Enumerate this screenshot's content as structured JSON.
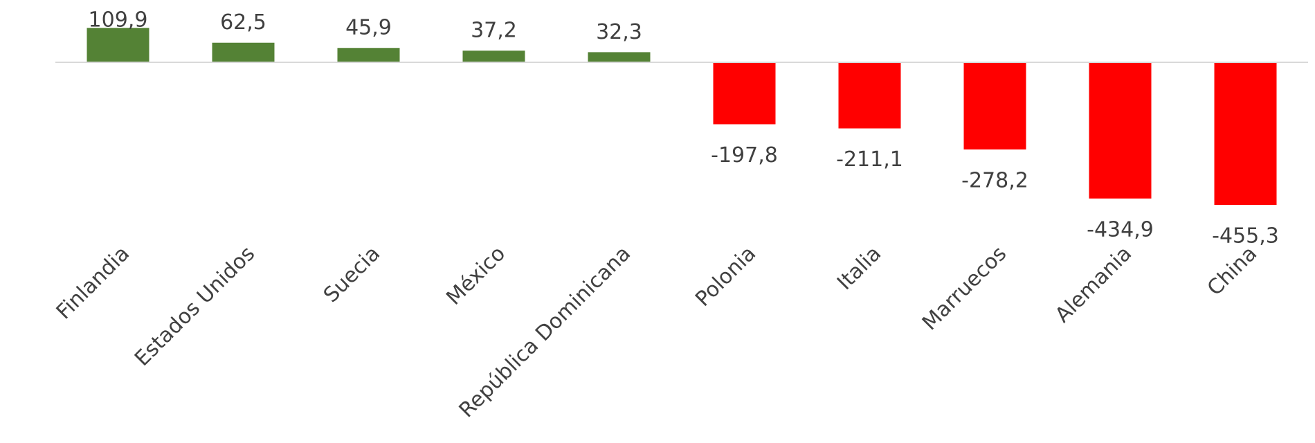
{
  "chart_data": {
    "type": "bar",
    "categories": [
      "Finlandia",
      "Estados Unidos",
      "Suecia",
      "México",
      "República Dominicana",
      "Polonia",
      "Italia",
      "Marruecos",
      "Alemania",
      "China"
    ],
    "values": [
      109.9,
      62.5,
      45.9,
      37.2,
      32.3,
      -197.8,
      -211.1,
      -278.2,
      -434.9,
      -455.3
    ],
    "value_labels": [
      "109,9",
      "62,5",
      "45,9",
      "37,2",
      "32,3",
      "-197,8",
      "-211,1",
      "-278,2",
      "-434,9",
      "-455,3"
    ],
    "color_positive": "#548235",
    "color_negative": "#ff0000"
  }
}
